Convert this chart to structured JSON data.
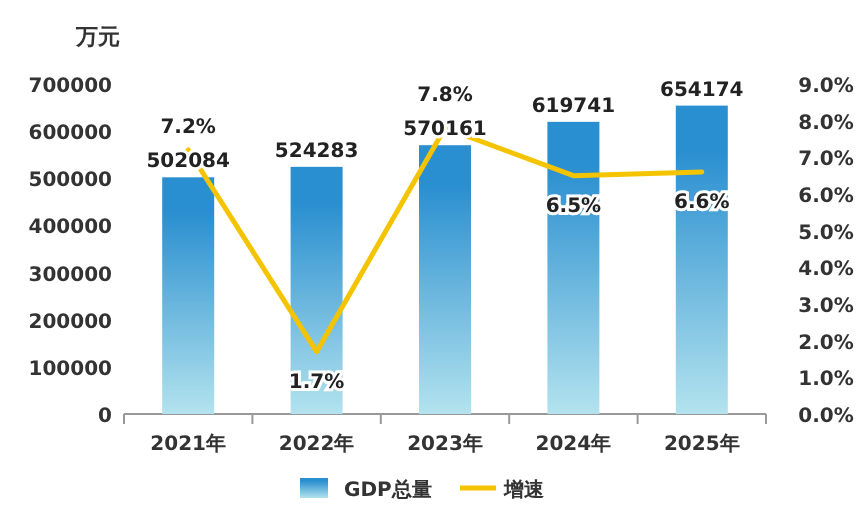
{
  "chart_data": {
    "type": "bar",
    "ylabel": "万元",
    "categories": [
      "2021年",
      "2022年",
      "2023年",
      "2024年",
      "2025年"
    ],
    "series": [
      {
        "name": "GDP总量",
        "color": "#2a8fd0",
        "values": [
          502084,
          524283,
          570161,
          619741,
          654174
        ]
      },
      {
        "name": "增速",
        "type": "line",
        "axis": "y2",
        "color": "#f5c400",
        "values": [
          7.2,
          1.7,
          7.8,
          6.5,
          6.6
        ],
        "value_labels": [
          "7.2%",
          "1.7%",
          "7.8%",
          "6.5%",
          "6.6%"
        ]
      }
    ],
    "data_labels": true,
    "ylim": [
      0,
      700000
    ],
    "yticks": [
      0,
      100000,
      200000,
      300000,
      400000,
      500000,
      600000,
      700000
    ],
    "y2lim": [
      0,
      9
    ],
    "y2ticks": [
      {
        "value": 0,
        "label": "0.0%"
      },
      {
        "value": 1,
        "label": "1.0%"
      },
      {
        "value": 2,
        "label": "2.0%"
      },
      {
        "value": 3,
        "label": "3.0%"
      },
      {
        "value": 4,
        "label": "4.0%"
      },
      {
        "value": 5,
        "label": "5.0%"
      },
      {
        "value": 6,
        "label": "6.0%"
      },
      {
        "value": 7,
        "label": "7.0%"
      },
      {
        "value": 8,
        "label": "8.0%"
      },
      {
        "value": 9,
        "label": "9.0%"
      }
    ],
    "legend": "bottom"
  }
}
